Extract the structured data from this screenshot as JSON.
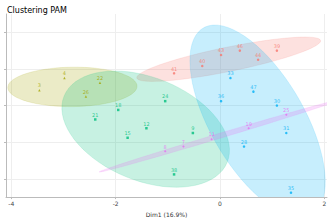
{
  "chart_data": {
    "type": "scatter",
    "title": "Clustering PAM",
    "x_label": "Dim1 (16.9%)",
    "xlim": [
      -4.1,
      2.05
    ],
    "xticks": [
      -4,
      -2,
      0,
      2
    ],
    "ylim": [
      -2.5,
      2.5
    ],
    "yticks": [
      -2,
      -1,
      0,
      1,
      2
    ],
    "grid": true,
    "tick_labels": "x",
    "data_labels": true,
    "series": [
      {
        "color": "#F8766D",
        "marker": "circle",
        "x": [
          0.02,
          0.38,
          0.73,
          1.09,
          -0.34,
          -0.88
        ],
        "y": [
          1.38,
          1.5,
          1.25,
          1.5,
          1.08,
          0.88
        ],
        "point_labels": [
          "43",
          "46",
          "44",
          "39",
          "40",
          "41"
        ]
      },
      {
        "color": "#A3A500",
        "marker": "triangle",
        "x": [
          -2.98,
          -3.46,
          -2.57,
          -2.3
        ],
        "y": [
          0.75,
          0.42,
          0.25,
          0.62
        ],
        "point_labels": [
          "4",
          "3",
          "26",
          "22"
        ]
      },
      {
        "color": "#00BF7D",
        "marker": "rect",
        "x": [
          -2.39,
          -1.95,
          -1.41,
          -1.05,
          -1.77,
          -0.52,
          -0.88
        ],
        "y": [
          -0.38,
          -0.12,
          -0.62,
          0.12,
          -0.88,
          -0.75,
          -1.88
        ],
        "point_labels": [
          "21",
          "18",
          "12",
          "24",
          "15",
          "9",
          "38"
        ]
      },
      {
        "color": "#00B0F6",
        "marker": "circle",
        "x": [
          0.2,
          0.64,
          1.09,
          1.27,
          0.46,
          0.02,
          1.36
        ],
        "y": [
          0.75,
          0.38,
          0,
          -0.75,
          -1.12,
          0.12,
          -2.38
        ],
        "point_labels": [
          "33",
          "47",
          "30",
          "31",
          "28",
          "36",
          "35"
        ]
      },
      {
        "color": "#E76BF3",
        "marker": "diamond",
        "x": [
          -0.7,
          -0.16,
          0.55,
          1.27,
          -1.05
        ],
        "y": [
          -1.12,
          -0.92,
          -0.62,
          -0.25,
          -1.25
        ],
        "point_labels": [
          "7",
          "11",
          "19",
          "25",
          "8"
        ]
      }
    ]
  }
}
